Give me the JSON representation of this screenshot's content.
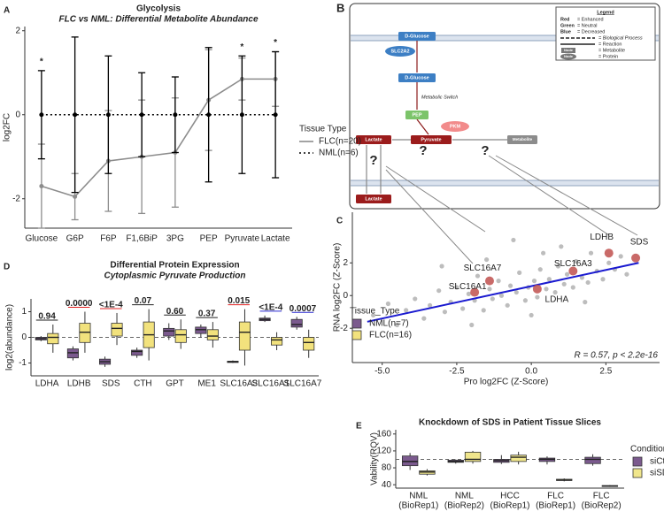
{
  "chart_data": [
    {
      "panel": "A",
      "type": "line",
      "title": "Glycolysis",
      "subtitle": "FLC vs NML: Differential Metabolite Abundance",
      "ylabel": "log2FC",
      "categories": [
        "Glucose",
        "G6P",
        "F6P",
        "F1,6BiP",
        "3PG",
        "PEP",
        "Pyruvate",
        "Lactate"
      ],
      "category_colors": [
        "#3333cc",
        "#1f1f5c",
        "#1f1f5c",
        "#1f1f5c",
        "#1f1f5c",
        "#1f1f5c",
        "#e02020",
        "#e02020"
      ],
      "series": [
        {
          "name": "FLC(n=20)",
          "color": "#8c8c8c",
          "line_style": "solid",
          "values": [
            -1.7,
            -1.95,
            -1.1,
            -1.0,
            -0.9,
            0.35,
            0.85,
            0.85
          ],
          "errors": [
            1.0,
            0.55,
            1.2,
            1.35,
            1.3,
            1.2,
            0.5,
            0.65
          ]
        },
        {
          "name": "NML(n=6)",
          "color": "#000000",
          "line_style": "dotted",
          "values": [
            0,
            0,
            0,
            0,
            0,
            0,
            0,
            0
          ],
          "errors": [
            1.05,
            1.85,
            1.4,
            1.0,
            0.9,
            1.6,
            1.4,
            1.5
          ]
        }
      ],
      "legend_title": "Tissue Type",
      "ylim": [
        -2.7,
        2.1
      ],
      "yticks": [
        -2,
        0,
        2
      ],
      "annotations": [
        {
          "text": "*",
          "category": "Glucose",
          "color": "#3333cc"
        },
        {
          "text": "*",
          "category": "Pyruvate",
          "color": "#e02020"
        },
        {
          "text": "*",
          "category": "Lactate",
          "color": "#e02020"
        }
      ]
    },
    {
      "panel": "C",
      "type": "scatter",
      "xlabel": "Pro log2FC (Z-Score)",
      "ylabel": "RNA log2FC (Z-Score)",
      "color": "#bdbdbd",
      "x": [
        -5.3,
        -4.8,
        -4.5,
        -4.2,
        -3.9,
        -3.6,
        -3.4,
        -3.1,
        -2.9,
        -2.7,
        -2.5,
        -2.3,
        -2.1,
        -1.9,
        -1.8,
        -1.6,
        -1.4,
        -1.3,
        -1.1,
        -1.0,
        -0.8,
        -0.7,
        -0.5,
        -0.4,
        -0.2,
        -0.1,
        0.1,
        0.2,
        0.3,
        0.5,
        0.6,
        0.8,
        0.9,
        1.1,
        1.2,
        1.4,
        1.5,
        1.7,
        1.9,
        2.0,
        2.2,
        2.4,
        2.6,
        2.8,
        3.0,
        3.2,
        -3.0,
        -1.5,
        0.0,
        1.0,
        -2.0,
        0.4,
        1.8,
        -0.6
      ],
      "y": [
        -1.2,
        -0.5,
        -1.8,
        -0.9,
        -0.2,
        -1.4,
        -0.6,
        0.3,
        -1.0,
        -0.4,
        0.5,
        -0.8,
        0.1,
        -0.3,
        1.2,
        -0.9,
        0.4,
        -0.2,
        0.9,
        0.0,
        -0.6,
        0.6,
        0.2,
        1.4,
        -0.3,
        0.5,
        0.9,
        -0.1,
        1.6,
        0.4,
        1.0,
        0.2,
        1.8,
        0.7,
        1.3,
        0.5,
        2.1,
        1.1,
        0.8,
        2.6,
        1.5,
        1.0,
        2.0,
        1.6,
        2.4,
        1.3,
        1.8,
        2.2,
        -1.2,
        3.0,
        -1.8,
        2.6,
        -0.4,
        3.4
      ],
      "xlim": [
        -6.0,
        4.3
      ],
      "xticks": [
        {
          "value": -5,
          "label": "-5.0"
        },
        -2.5,
        {
          "value": 0,
          "label": "0.0"
        },
        2.5
      ],
      "ylim": [
        -4.1,
        5.1
      ],
      "yticks": [
        -2,
        0,
        2
      ],
      "fit": {
        "color": "#1a1ad0",
        "x": [
          -5.5,
          3.6
        ],
        "y": [
          -1.6,
          2.0
        ]
      },
      "highlights": {
        "color": "#c0504d",
        "labels": [
          "LDHB",
          "SDS",
          "SLC16A3",
          "SLC16A7",
          "SLC16A1",
          "LDHA"
        ],
        "label_colors": [
          "#e02020",
          "#e02020",
          "#e02020",
          "#2a2ad0",
          "#2a2ad0",
          "#1e8c1e"
        ],
        "x": [
          2.6,
          3.5,
          1.4,
          -1.4,
          -1.9,
          0.2
        ],
        "y": [
          2.6,
          2.3,
          1.5,
          0.9,
          0.2,
          0.4
        ]
      },
      "annotation": "R = 0.57, p < 2.2e-16"
    },
    {
      "panel": "D",
      "type": "box",
      "title": "Differential Protein Expression",
      "subtitle": "Cytoplasmic Pyruvate Production",
      "ylabel": "log2(abundance)",
      "categories": [
        "LDHA",
        "LDHB",
        "SDS",
        "CTH",
        "GPT",
        "ME1",
        "SLC16A3",
        "SLC16A1",
        "SLC16A7"
      ],
      "category_colors": [
        "#222222",
        "#e02020",
        "#e02020",
        "#222222",
        "#222222",
        "#222222",
        "#e02020",
        "#2a2ad0",
        "#2a2ad0"
      ],
      "p_values": [
        "0.94",
        "0.0000",
        "<1E-4",
        "0.07",
        "0.60",
        "0.37",
        "0.015",
        "<1E-4",
        "0.0007"
      ],
      "legend_title": "Tissue_Type",
      "series": [
        {
          "name": "NML(n=7)",
          "color": "#7b5a8e",
          "box": [
            [
              -0.15,
              -0.1,
              -0.05,
              0,
              0.05
            ],
            [
              -0.9,
              -0.8,
              -0.6,
              -0.45,
              -0.35
            ],
            [
              -1.15,
              -1.05,
              -0.95,
              -0.85,
              -0.75
            ],
            [
              -0.8,
              -0.7,
              -0.55,
              -0.5,
              -0.4
            ],
            [
              -0.1,
              0.05,
              0.25,
              0.35,
              0.55
            ],
            [
              0,
              0.15,
              0.3,
              0.4,
              0.5
            ],
            [
              -1.0,
              -0.98,
              -0.95,
              -0.93,
              -0.9
            ],
            [
              0.6,
              0.65,
              0.7,
              0.75,
              0.85
            ],
            [
              0.3,
              0.4,
              0.5,
              0.7,
              0.8
            ]
          ]
        },
        {
          "name": "FLC(n=16)",
          "color": "#f2e27d",
          "box": [
            [
              -0.6,
              -0.25,
              0,
              0.15,
              0.5
            ],
            [
              -0.6,
              -0.2,
              0.2,
              0.55,
              1.0
            ],
            [
              -0.3,
              0.05,
              0.35,
              0.55,
              0.95
            ],
            [
              -0.9,
              -0.4,
              0.1,
              0.6,
              1.1
            ],
            [
              -0.45,
              -0.2,
              0.1,
              0.3,
              0.7
            ],
            [
              -0.4,
              -0.1,
              0.05,
              0.3,
              0.6
            ],
            [
              -1.1,
              -0.5,
              0.2,
              0.6,
              1.1
            ],
            [
              -0.5,
              -0.3,
              -0.1,
              0.0,
              0.2
            ],
            [
              -0.8,
              -0.5,
              -0.2,
              0.0,
              0.3
            ]
          ]
        }
      ],
      "ylim": [
        -1.5,
        1.5
      ],
      "yticks": [
        -1,
        0,
        1
      ],
      "hline": 0
    },
    {
      "panel": "E",
      "type": "box",
      "title": "Knockdown of SDS in Patient Tissue Slices",
      "ylabel": "Vability(RQV)",
      "categories": [
        [
          "NML",
          "(BioRep1)"
        ],
        [
          "NML",
          "(BioRep2)"
        ],
        [
          "HCC",
          "(BioRep1)"
        ],
        [
          "FLC",
          "(BioRep1)"
        ],
        [
          "FLC",
          "(BioRep2)"
        ]
      ],
      "legend_title": "Condition",
      "series": [
        {
          "name": "siCtrl",
          "color": "#7b5a8e",
          "box": [
            [
              75,
              85,
              95,
              108,
              115
            ],
            [
              90,
              93,
              95,
              98,
              100
            ],
            [
              89,
              93,
              97,
              100,
              110
            ],
            [
              88,
              95,
              100,
              103,
              107
            ],
            [
              85,
              90,
              100,
              105,
              112
            ]
          ]
        },
        {
          "name": "siSDS",
          "color": "#f0e68c",
          "box": [
            [
              62,
              65,
              70,
              73,
              77
            ],
            [
              90,
              95,
              100,
              117,
              120
            ],
            [
              88,
              95,
              105,
              110,
              118
            ],
            [
              48,
              50,
              51,
              53,
              55
            ],
            [
              35,
              36,
              37,
              38,
              39
            ]
          ]
        }
      ],
      "ylim": [
        32,
        170
      ],
      "yticks": [
        40,
        80,
        120,
        160
      ],
      "hline": 100
    }
  ],
  "diagram": {
    "panel": "B",
    "legend": {
      "title": "Legend",
      "items": [
        {
          "key": "Red",
          "text": "= Enhanced",
          "color": "#e02020"
        },
        {
          "key": "Green",
          "text": "= Neutral",
          "color": "#2ca02c"
        },
        {
          "key": "Blue",
          "text": "= Decreased",
          "color": "#2a2ad0"
        }
      ],
      "symbols": [
        "= Biological Process",
        "= Reaction",
        "= Metabolite",
        "= Protein"
      ],
      "node_sample": "Node"
    },
    "nodes": [
      "D-Glucose",
      "SLC2A2",
      "D-Glucose",
      "Metabolic Switch",
      "PEP",
      "PKM",
      "Pyruvate",
      "Lactate",
      "Metabolite",
      "Lactate",
      "?",
      "?",
      "?"
    ]
  }
}
